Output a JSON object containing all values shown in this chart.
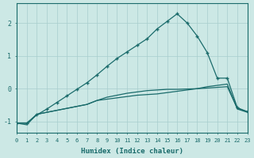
{
  "xlabel": "Humidex (Indice chaleur)",
  "background_color": "#cce8e5",
  "line_color": "#1a6b6b",
  "grid_color": "#a8cece",
  "xlim": [
    0,
    23
  ],
  "ylim": [
    -1.35,
    2.6
  ],
  "xticks": [
    0,
    1,
    2,
    3,
    4,
    5,
    6,
    7,
    8,
    9,
    10,
    11,
    12,
    13,
    14,
    15,
    16,
    17,
    18,
    19,
    20,
    21,
    22,
    23
  ],
  "yticks": [
    -1,
    0,
    1,
    2
  ],
  "line1_x": [
    0,
    1,
    2,
    3,
    4,
    5,
    6,
    7,
    8,
    9,
    10,
    11,
    12,
    13,
    14,
    15,
    16,
    17,
    18,
    19,
    20,
    21,
    22,
    23
  ],
  "line1_y": [
    -1.05,
    -1.05,
    -0.8,
    -0.62,
    -0.42,
    -0.22,
    -0.02,
    0.18,
    0.42,
    0.68,
    0.92,
    1.12,
    1.32,
    1.52,
    1.82,
    2.05,
    2.28,
    2.0,
    1.6,
    1.1,
    0.32,
    0.32,
    -0.58,
    -0.7
  ],
  "line2_x": [
    0,
    1,
    2,
    3,
    4,
    5,
    6,
    7,
    8,
    9,
    10,
    11,
    12,
    13,
    14,
    15,
    16,
    17,
    18,
    19,
    20,
    21,
    22,
    23
  ],
  "line2_y": [
    -1.05,
    -1.1,
    -0.78,
    -0.72,
    -0.66,
    -0.6,
    -0.54,
    -0.48,
    -0.36,
    -0.32,
    -0.28,
    -0.24,
    -0.2,
    -0.18,
    -0.16,
    -0.12,
    -0.08,
    -0.04,
    0.0,
    0.06,
    0.1,
    0.14,
    -0.62,
    -0.72
  ],
  "line3_x": [
    0,
    1,
    2,
    3,
    4,
    5,
    6,
    7,
    8,
    9,
    10,
    11,
    12,
    13,
    14,
    15,
    16,
    17,
    18,
    19,
    20,
    21,
    22,
    23
  ],
  "line3_y": [
    -1.05,
    -1.05,
    -0.78,
    -0.72,
    -0.66,
    -0.6,
    -0.54,
    -0.48,
    -0.36,
    -0.26,
    -0.2,
    -0.14,
    -0.1,
    -0.06,
    -0.04,
    -0.02,
    -0.02,
    -0.01,
    0.0,
    0.02,
    0.04,
    0.06,
    -0.6,
    -0.7
  ]
}
